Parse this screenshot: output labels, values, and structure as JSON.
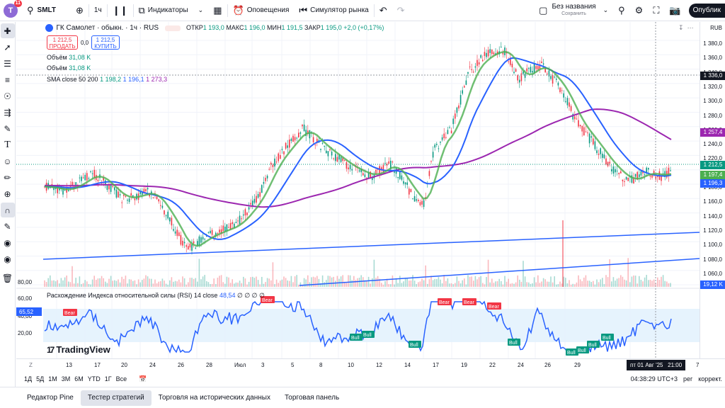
{
  "topbar": {
    "avatar_letter": "T",
    "avatar_badge": "11",
    "symbol": "SMLT",
    "interval": "1ч",
    "indicators": "Индикаторы",
    "alerts": "Оповещения",
    "replay": "Симулятор рынка",
    "layout_name": "Без названия",
    "layout_status": "Сохранить",
    "publish": "Опублик"
  },
  "legend": {
    "title": "ГК Самолет · обыкн. · 1ч · RUS",
    "open_label": "ОТКР",
    "open": "1 193,0",
    "high_label": "МАКС",
    "high": "1 196,0",
    "low_label": "МИН",
    "low": "1 191,5",
    "close_label": "ЗАКР",
    "close": "1 195,0",
    "change": "+2,0 (+0,17%)",
    "sell_price": "1 212,5",
    "sell_label": "ПРОДАТЬ",
    "spread": "0,0",
    "buy_price": "1 212,5",
    "buy_label": "КУПИТЬ",
    "vol1_label": "Объём",
    "vol1": "31,08 K",
    "vol2_label": "Объём",
    "vol2": "31,08 K",
    "sma_label": "SMA close 50 200",
    "sma1": "1 198,2",
    "sma2": "1 196,1",
    "sma3": "1 273,3"
  },
  "price_axis": {
    "currency": "RUB",
    "labels": [
      "1 380,0",
      "1 360,0",
      "1 340,0",
      "1 320,0",
      "1 300,0",
      "1 280,0",
      "1 260,0",
      "1 240,0",
      "1 220,0",
      "1 200,0",
      "1 180,0",
      "1 160,0",
      "1 140,0",
      "1 120,0",
      "1 100,0",
      "1 080,0",
      "1 060,0"
    ],
    "tags": [
      {
        "text": "1 336,0",
        "color": "#131722"
      },
      {
        "text": "1 257,4",
        "color": "#9c27b0"
      },
      {
        "text": "1 212,5",
        "color": "#089981"
      },
      {
        "text": "1 197,4",
        "color": "#4caf50"
      },
      {
        "text": "1 196,3",
        "color": "#2962ff"
      },
      {
        "text": "19,12 K",
        "color": "#2962ff"
      }
    ]
  },
  "rsi": {
    "label": "Расхождение Индекса относительной силы (RSI)",
    "params": "14 close",
    "value": "48,54",
    "extras": "∅ ∅ ∅ ∅",
    "axis": [
      "80,00",
      "60,00",
      "40,00",
      "20,00"
    ],
    "current_tag": "65,52",
    "bear_label": "Bear",
    "bull_label": "Bull"
  },
  "time_axis": {
    "labels": [
      "13",
      "17",
      "20",
      "24",
      "26",
      "28",
      "Июл",
      "3",
      "5",
      "8",
      "10",
      "12",
      "14",
      "17",
      "19",
      "22",
      "24",
      "26",
      "29",
      "7"
    ],
    "cursor": "пт 01 Авг '25",
    "cursor_time": "21:00"
  },
  "range": {
    "items": [
      "1Д",
      "5Д",
      "1М",
      "3М",
      "6М",
      "YTD",
      "1Г",
      "Все"
    ],
    "clock": "04:38:29 UTC+3",
    "session": "рег",
    "adjust": "коррект."
  },
  "bottom": {
    "tabs": [
      "Редактор Pine",
      "Тестер стратегий",
      "Торговля на исторических данных",
      "Торговая панель"
    ]
  },
  "logo": "TradingView",
  "colors": {
    "up": "#089981",
    "down": "#f23645",
    "sma_green": "#4caf50",
    "sma_blue": "#2962ff",
    "sma_purple": "#9c27b0"
  }
}
